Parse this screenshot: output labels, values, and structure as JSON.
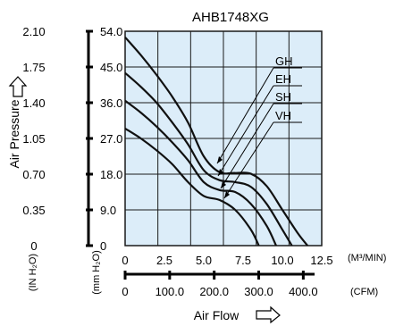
{
  "chart_data": {
    "type": "line",
    "title": "AHB1748XG",
    "xlabel": "Air Flow",
    "ylabel": "Air Pressure",
    "x_axes": [
      {
        "unit": "(M³/MIN)",
        "ticks": [
          "0",
          "2.5",
          "5.0",
          "7.5",
          "10.0",
          "12.5"
        ],
        "range": [
          0,
          12.5
        ]
      },
      {
        "unit": "(CFM)",
        "ticks": [
          "0",
          "100.0",
          "200.0",
          "300.0",
          "400.0"
        ],
        "range": [
          0,
          441.4
        ]
      }
    ],
    "y_axes": [
      {
        "unit": "(IN H₂O)",
        "ticks": [
          "0",
          "0.35",
          "0.70",
          "1.05",
          "1.40",
          "1.75",
          "2.10"
        ],
        "range": [
          0,
          2.1
        ]
      },
      {
        "unit": "(mm H₂O)",
        "ticks": [
          "0",
          "9.0",
          "18.0",
          "27.0",
          "36.0",
          "45.0",
          "54.0"
        ],
        "range": [
          0,
          54.0
        ]
      }
    ],
    "grid": true,
    "series": [
      {
        "name": "GH",
        "x": [
          0,
          1,
          2,
          3,
          4,
          5,
          6,
          7,
          8,
          9,
          10,
          11,
          11.6
        ],
        "y": [
          52.5,
          48.0,
          43.0,
          37.5,
          31.0,
          22.5,
          18.5,
          18.3,
          18.1,
          15.0,
          9.0,
          3.0,
          0
        ]
      },
      {
        "name": "EH",
        "x": [
          0,
          1,
          2,
          3,
          4,
          5,
          6,
          7,
          8,
          9,
          10,
          10.6
        ],
        "y": [
          43.5,
          40.0,
          36.0,
          31.0,
          25.5,
          19.0,
          16.5,
          16.0,
          14.8,
          10.5,
          4.0,
          0
        ]
      },
      {
        "name": "SH",
        "x": [
          0,
          1,
          2,
          3,
          4,
          5,
          6,
          7,
          8,
          9,
          9.6
        ],
        "y": [
          36.5,
          33.5,
          30.0,
          26.0,
          21.5,
          16.0,
          14.0,
          13.5,
          10.5,
          5.0,
          0
        ]
      },
      {
        "name": "VH",
        "x": [
          0,
          1,
          2,
          3,
          4,
          5,
          6,
          7,
          8,
          8.5
        ],
        "y": [
          29.5,
          27.0,
          24.0,
          20.5,
          16.0,
          12.5,
          11.5,
          9.0,
          4.0,
          0
        ]
      }
    ],
    "arrow_icon": "right-arrow-icon",
    "up_arrow_icon": "up-arrow-icon",
    "colors": {
      "plot_bg": "#dcedf9",
      "grid": "#1a1a1a",
      "line": "#111111"
    }
  }
}
